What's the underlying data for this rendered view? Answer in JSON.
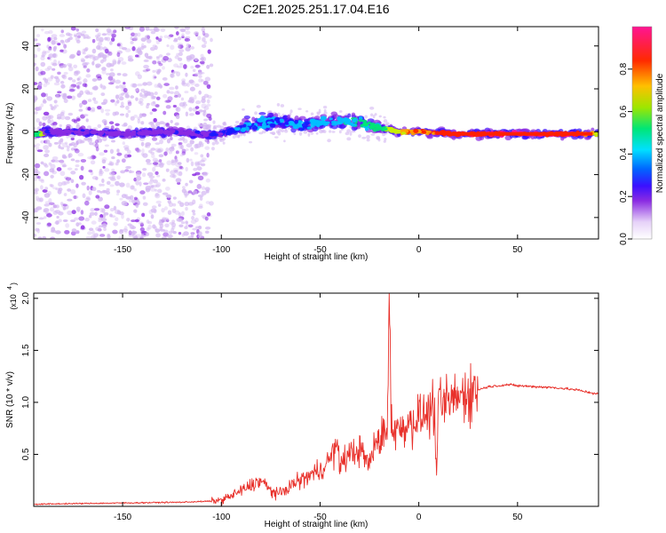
{
  "figure_title": "C2E1.2025.251.17.04.E16",
  "colors": {
    "snr_line": "#e8302a",
    "colormap": [
      "#ffffff",
      "#d9c3f5",
      "#8a2be2",
      "#1a1aff",
      "#00bfff",
      "#00e676",
      "#c8f000",
      "#ffa500",
      "#ff2000",
      "#ff1493"
    ]
  },
  "chart_data": [
    {
      "type": "heatmap",
      "name": "spectrogram",
      "xlabel": "Height of straight line (km)",
      "ylabel": "Frequency (Hz)",
      "xlim": [
        -195,
        91
      ],
      "ylim": [
        -50,
        49
      ],
      "x_ticks": [
        -150,
        -100,
        -50,
        0,
        50
      ],
      "y_ticks": [
        -40,
        -20,
        0,
        20,
        40
      ],
      "colorbar": {
        "label": "Normalized spectral amplitude",
        "range": [
          0.0,
          1.0
        ],
        "ticks": [
          "0.0",
          "0.2",
          "0.4",
          "0.6",
          "0.8"
        ]
      },
      "ridge": [
        {
          "x": -190,
          "freq": 0,
          "amp": 0.22
        },
        {
          "x": -170,
          "freq": 0,
          "amp": 0.25
        },
        {
          "x": -150,
          "freq": -1,
          "amp": 0.22
        },
        {
          "x": -130,
          "freq": 0,
          "amp": 0.24
        },
        {
          "x": -110,
          "freq": -1,
          "amp": 0.25
        },
        {
          "x": -100,
          "freq": -1,
          "amp": 0.3
        },
        {
          "x": -90,
          "freq": 2,
          "amp": 0.38
        },
        {
          "x": -80,
          "freq": 4,
          "amp": 0.42
        },
        {
          "x": -70,
          "freq": 5,
          "amp": 0.38
        },
        {
          "x": -60,
          "freq": 3,
          "amp": 0.4
        },
        {
          "x": -50,
          "freq": 4,
          "amp": 0.42
        },
        {
          "x": -40,
          "freq": 5,
          "amp": 0.45
        },
        {
          "x": -30,
          "freq": 4,
          "amp": 0.5
        },
        {
          "x": -20,
          "freq": 2,
          "amp": 0.55
        },
        {
          "x": -10,
          "freq": 0,
          "amp": 0.72
        },
        {
          "x": 0,
          "freq": 0,
          "amp": 0.85
        },
        {
          "x": 20,
          "freq": -1,
          "amp": 0.9
        },
        {
          "x": 40,
          "freq": -1,
          "amp": 0.95
        },
        {
          "x": 60,
          "freq": -1,
          "amp": 0.97
        },
        {
          "x": 80,
          "freq": -1,
          "amp": 0.9
        },
        {
          "x": 91,
          "freq": -1,
          "amp": 0.6
        }
      ]
    },
    {
      "type": "line",
      "name": "snr",
      "xlabel": "Height of straight line (km)",
      "ylabel": "SNR (10 * v/v)",
      "y_multiplier_label": "(x10",
      "y_multiplier_exp": "4",
      "xlim": [
        -195,
        91
      ],
      "ylim": [
        0,
        2.05
      ],
      "x_ticks": [
        -150,
        -100,
        -50,
        0,
        50
      ],
      "y_ticks": [
        0.5,
        1.0,
        1.5,
        2.0
      ],
      "y_tick_labels": [
        "0.5",
        "1.0",
        "1.5",
        "2.0"
      ],
      "series": [
        {
          "name": "SNR",
          "x": [
            -195,
            -180,
            -160,
            -140,
            -120,
            -105,
            -100,
            -95,
            -90,
            -85,
            -80,
            -75,
            -70,
            -65,
            -60,
            -55,
            -50,
            -45,
            -42,
            -40,
            -38,
            -35,
            -30,
            -25,
            -22,
            -20,
            -18,
            -16,
            -15,
            -14,
            -12,
            -10,
            -5,
            0,
            5,
            8,
            9,
            10,
            15,
            20,
            25,
            30,
            35,
            40,
            45,
            50,
            60,
            70,
            80,
            85,
            91
          ],
          "y": [
            0.02,
            0.025,
            0.03,
            0.035,
            0.04,
            0.05,
            0.06,
            0.1,
            0.15,
            0.2,
            0.25,
            0.15,
            0.12,
            0.2,
            0.25,
            0.3,
            0.35,
            0.45,
            0.6,
            0.4,
            0.45,
            0.5,
            0.55,
            0.4,
            0.6,
            0.65,
            0.7,
            0.75,
            2.05,
            0.85,
            0.7,
            0.75,
            0.8,
            0.85,
            0.9,
            0.95,
            0.3,
            0.95,
            1.0,
            1.05,
            1.1,
            1.12,
            1.15,
            1.16,
            1.17,
            1.16,
            1.15,
            1.14,
            1.12,
            1.1,
            1.08
          ]
        }
      ]
    }
  ]
}
